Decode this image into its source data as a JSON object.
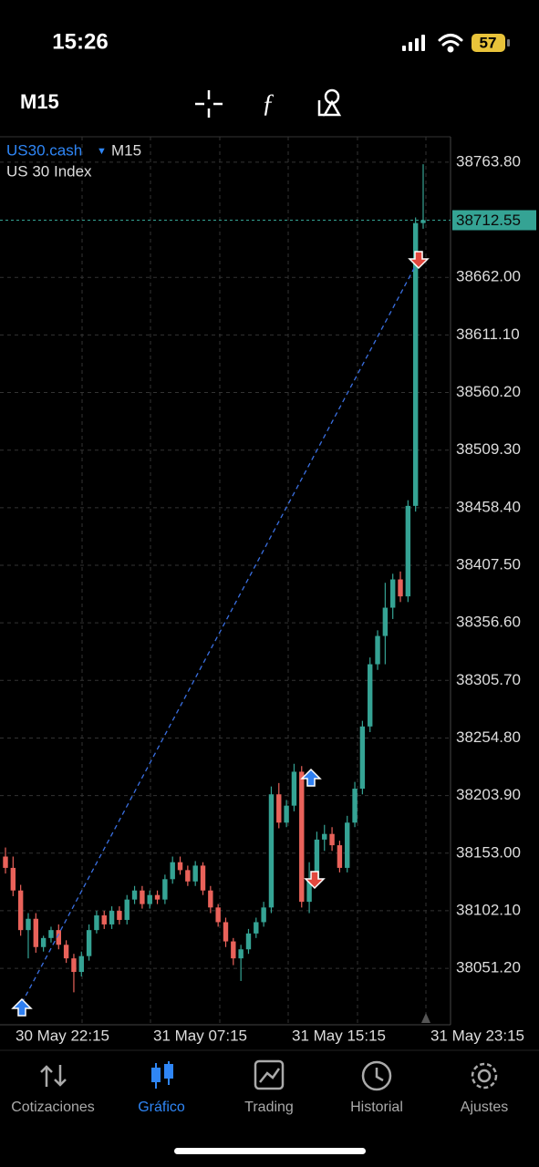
{
  "status_bar": {
    "time": "15:26",
    "battery": "57"
  },
  "toolbar": {
    "timeframe": "M15"
  },
  "chart_header": {
    "symbol": "US30.cash",
    "timeframe": "M15",
    "description": "US 30 Index"
  },
  "chart_data": {
    "type": "candlestick",
    "up_color": "#35a394",
    "down_color": "#e9625a",
    "open": [
      38150,
      38140,
      38120,
      38085,
      38095,
      38070,
      38078,
      38085,
      38072,
      38060,
      38048,
      38062,
      38085,
      38098,
      38090,
      38102,
      38094,
      38112,
      38120,
      38108,
      38116,
      38112,
      38130,
      38145,
      38138,
      38128,
      38142,
      38120,
      38105,
      38092,
      38075,
      38060,
      38068,
      38082,
      38092,
      38105,
      38205,
      38180,
      38195,
      38225,
      38110,
      38130,
      38165,
      38170,
      38160,
      38140,
      38180,
      38210,
      38265,
      38320,
      38345,
      38370,
      38395,
      38380,
      38460,
      38710
    ],
    "high": [
      38158,
      38150,
      38125,
      38100,
      38100,
      38080,
      38088,
      38090,
      38076,
      38064,
      38066,
      38090,
      38102,
      38102,
      38106,
      38106,
      38116,
      38124,
      38124,
      38120,
      38120,
      38134,
      38150,
      38150,
      38142,
      38146,
      38145,
      38124,
      38108,
      38096,
      38078,
      38072,
      38086,
      38096,
      38110,
      38212,
      38215,
      38200,
      38232,
      38230,
      38145,
      38172,
      38178,
      38176,
      38164,
      38186,
      38216,
      38270,
      38326,
      38350,
      38392,
      38400,
      38402,
      38465,
      38715,
      38762
    ],
    "low": [
      38135,
      38115,
      38080,
      38060,
      38065,
      38066,
      38074,
      38068,
      38056,
      38030,
      38044,
      38058,
      38082,
      38086,
      38086,
      38090,
      38090,
      38108,
      38104,
      38104,
      38108,
      38108,
      38126,
      38134,
      38124,
      38124,
      38116,
      38100,
      38088,
      38070,
      38054,
      38040,
      38064,
      38078,
      38088,
      38100,
      38175,
      38176,
      38190,
      38105,
      38100,
      38126,
      38155,
      38155,
      38136,
      38136,
      38176,
      38205,
      38260,
      38315,
      38320,
      38360,
      38375,
      38375,
      38455,
      38705
    ],
    "close": [
      38140,
      38120,
      38085,
      38095,
      38070,
      38078,
      38085,
      38072,
      38060,
      38048,
      38062,
      38085,
      38098,
      38090,
      38102,
      38094,
      38112,
      38120,
      38108,
      38116,
      38112,
      38130,
      38145,
      38138,
      38128,
      38142,
      38120,
      38105,
      38092,
      38075,
      38060,
      38068,
      38082,
      38092,
      38105,
      38205,
      38180,
      38195,
      38225,
      38110,
      38130,
      38165,
      38170,
      38160,
      38140,
      38180,
      38210,
      38265,
      38320,
      38345,
      38370,
      38395,
      38380,
      38460,
      38710,
      38712.55
    ],
    "last_price": 38712.55,
    "ylim": [
      38001.3,
      38786.3
    ],
    "yticks": [
      {
        "value": 38763.8,
        "label": "38763.80"
      },
      {
        "value": 38662,
        "label": "38662.00"
      },
      {
        "value": 38611.1,
        "label": "38611.10"
      },
      {
        "value": 38560.2,
        "label": "38560.20"
      },
      {
        "value": 38509.3,
        "label": "38509.30"
      },
      {
        "value": 38458.4,
        "label": "38458.40"
      },
      {
        "value": 38407.5,
        "label": "38407.50"
      },
      {
        "value": 38356.6,
        "label": "38356.60"
      },
      {
        "value": 38305.7,
        "label": "38305.70"
      },
      {
        "value": 38254.8,
        "label": "38254.80"
      },
      {
        "value": 38203.9,
        "label": "38203.90"
      },
      {
        "value": 38153,
        "label": "38153.00"
      },
      {
        "value": 38102.1,
        "label": "38102.10"
      },
      {
        "value": 38051.2,
        "label": "38051.20"
      }
    ],
    "xtick_labels": [
      "30 May 22:15",
      "31 May 07:15",
      "31 May 15:15",
      "31 May 23:15"
    ],
    "grid": true
  },
  "tabs": [
    "Cotizaciones",
    "Gráfico",
    "Trading",
    "Historial",
    "Ajustes"
  ]
}
